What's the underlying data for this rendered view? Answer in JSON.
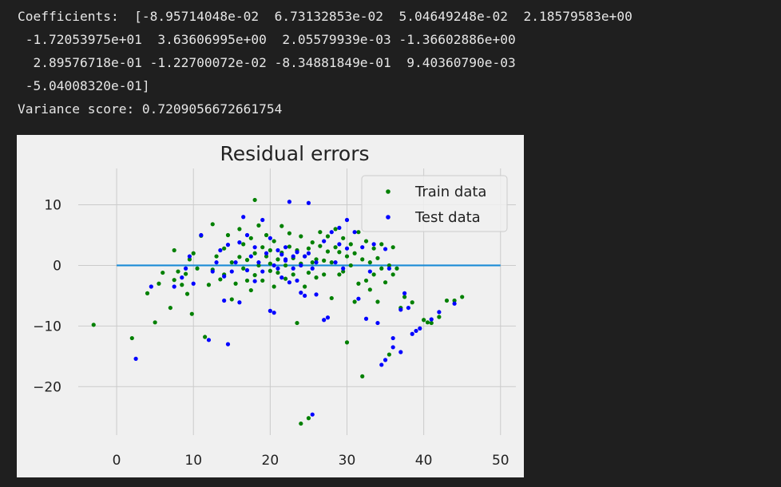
{
  "output": {
    "lines": [
      "Coefficients:  [-8.95714048e-02  6.73132853e-02  5.04649248e-02  2.18579583e+00",
      " -1.72053975e+01  3.63606995e+00  2.05579939e-03 -1.36602886e+00",
      "  2.89576718e-01 -1.22700072e-02 -8.34881849e-01  9.40360790e-03",
      " -5.04008320e-01]",
      "Variance score: 0.7209056672661754"
    ]
  },
  "colors": {
    "train": "#008000",
    "test": "#0000ff",
    "zero_line": "#1b8bd6",
    "background": "#1f1f1f",
    "plot_background": "#f0f0f0"
  },
  "chart_data": {
    "type": "scatter",
    "title": "Residual errors",
    "xlabel": "",
    "ylabel": "",
    "xlim": [
      -5,
      52
    ],
    "ylim": [
      -28,
      16
    ],
    "xticks": [
      0,
      10,
      20,
      30,
      40,
      50
    ],
    "yticks": [
      10,
      0,
      -10,
      -20
    ],
    "grid": true,
    "legend_position": "top-right",
    "hline": {
      "y": 0,
      "x_from": 0,
      "x_to": 50
    },
    "series": [
      {
        "name": "Train data",
        "color": "#008000",
        "points": [
          [
            -3,
            -9.8
          ],
          [
            2,
            -12
          ],
          [
            5,
            -9.4
          ],
          [
            4,
            -4.6
          ],
          [
            5.5,
            -3
          ],
          [
            6,
            -1.2
          ],
          [
            7,
            -7
          ],
          [
            7.5,
            -2.4
          ],
          [
            7.5,
            2.5
          ],
          [
            8,
            -1
          ],
          [
            8.5,
            -3.2
          ],
          [
            9,
            -1.4
          ],
          [
            9.2,
            -4.7
          ],
          [
            9.5,
            1
          ],
          [
            9.8,
            -8
          ],
          [
            10,
            2
          ],
          [
            10.5,
            -0.5
          ],
          [
            11,
            4.9
          ],
          [
            11.5,
            -11.8
          ],
          [
            12,
            -3.2
          ],
          [
            12.5,
            -0.7
          ],
          [
            12.5,
            6.8
          ],
          [
            13,
            1.5
          ],
          [
            13.5,
            -2.3
          ],
          [
            14,
            2.8
          ],
          [
            14,
            -1.5
          ],
          [
            14.5,
            5
          ],
          [
            15,
            0.5
          ],
          [
            15,
            -5.6
          ],
          [
            15.5,
            -3
          ],
          [
            16,
            1.4
          ],
          [
            16,
            6
          ],
          [
            16.5,
            -0.5
          ],
          [
            16.5,
            3.5
          ],
          [
            17,
            -2.5
          ],
          [
            17,
            0.9
          ],
          [
            17.5,
            -4.1
          ],
          [
            17.5,
            4.5
          ],
          [
            18,
            10.8
          ],
          [
            18,
            2
          ],
          [
            18,
            -1.6
          ],
          [
            18.5,
            0
          ],
          [
            18.5,
            6.6
          ],
          [
            19,
            3
          ],
          [
            19,
            -2.5
          ],
          [
            19.5,
            1.5
          ],
          [
            19.5,
            5
          ],
          [
            20,
            0.3
          ],
          [
            20,
            -0.9
          ],
          [
            20,
            2.5
          ],
          [
            20.5,
            -3.5
          ],
          [
            20.5,
            4
          ],
          [
            21,
            1
          ],
          [
            21,
            -1.2
          ],
          [
            21.5,
            2.1
          ],
          [
            21.5,
            6.5
          ],
          [
            22,
            0
          ],
          [
            22,
            -2.2
          ],
          [
            22.5,
            3.1
          ],
          [
            22.5,
            5.3
          ],
          [
            23,
            1.2
          ],
          [
            23,
            -1.5
          ],
          [
            23.5,
            2.5
          ],
          [
            23.5,
            -9.5
          ],
          [
            24,
            0.3
          ],
          [
            24,
            4.8
          ],
          [
            24.5,
            -3.5
          ],
          [
            24.5,
            1.5
          ],
          [
            25,
            2.8
          ],
          [
            25,
            -1.2
          ],
          [
            25.5,
            0.5
          ],
          [
            25.5,
            3.8
          ],
          [
            26,
            -2
          ],
          [
            26,
            1
          ],
          [
            26.5,
            5.5
          ],
          [
            26.5,
            3.2
          ],
          [
            27,
            0.8
          ],
          [
            27,
            -1.5
          ],
          [
            27.5,
            4.8
          ],
          [
            27.5,
            2.3
          ],
          [
            28,
            -5.4
          ],
          [
            28,
            0.5
          ],
          [
            28.5,
            3
          ],
          [
            28.5,
            6
          ],
          [
            29,
            -1.5
          ],
          [
            29,
            2.2
          ],
          [
            29.5,
            4.5
          ],
          [
            29.5,
            -1
          ],
          [
            30,
            -12.7
          ],
          [
            30,
            1.5
          ],
          [
            30.5,
            0
          ],
          [
            30.5,
            3.5
          ],
          [
            31,
            -6
          ],
          [
            31,
            2
          ],
          [
            31.5,
            -3
          ],
          [
            31.5,
            5.5
          ],
          [
            32,
            -18.3
          ],
          [
            32,
            1
          ],
          [
            32.5,
            -2.5
          ],
          [
            32.5,
            4
          ],
          [
            33,
            0.5
          ],
          [
            33,
            -4
          ],
          [
            33.5,
            2.8
          ],
          [
            33.5,
            -1.5
          ],
          [
            34,
            1.2
          ],
          [
            34,
            -6
          ],
          [
            34.5,
            -0.5
          ],
          [
            34.5,
            3.5
          ],
          [
            35,
            -2.8
          ],
          [
            35.5,
            0
          ],
          [
            35.5,
            -14.7
          ],
          [
            36,
            3
          ],
          [
            36,
            -1.5
          ],
          [
            36.5,
            -0.5
          ],
          [
            37,
            -7
          ],
          [
            37.5,
            -5.2
          ],
          [
            38.5,
            -6.1
          ],
          [
            40,
            -9
          ],
          [
            40.5,
            -9.4
          ],
          [
            41,
            -9.5
          ],
          [
            42,
            -8.5
          ],
          [
            43,
            -5.8
          ],
          [
            44,
            -5.8
          ],
          [
            45,
            -5.2
          ],
          [
            24,
            -26.1
          ],
          [
            25,
            -25.2
          ]
        ]
      },
      {
        "name": "Test data",
        "color": "#0000ff",
        "points": [
          [
            2.5,
            -15.4
          ],
          [
            4.5,
            -3.5
          ],
          [
            7.5,
            -3.5
          ],
          [
            8.5,
            -2
          ],
          [
            9,
            -0.5
          ],
          [
            9.5,
            1.5
          ],
          [
            10,
            -3
          ],
          [
            11,
            5
          ],
          [
            12,
            -12.3
          ],
          [
            12.5,
            -1
          ],
          [
            13,
            0.5
          ],
          [
            13.5,
            2.5
          ],
          [
            14,
            -5.8
          ],
          [
            14,
            -1.8
          ],
          [
            14.5,
            -13
          ],
          [
            14.5,
            3.4
          ],
          [
            15,
            -1
          ],
          [
            15.5,
            0.5
          ],
          [
            16,
            -6.1
          ],
          [
            16,
            3.8
          ],
          [
            16.5,
            8
          ],
          [
            17,
            -0.8
          ],
          [
            17,
            5
          ],
          [
            17.5,
            1.5
          ],
          [
            18,
            -2.6
          ],
          [
            18,
            3
          ],
          [
            18.5,
            0.5
          ],
          [
            19,
            7.5
          ],
          [
            19,
            -1
          ],
          [
            19.5,
            2
          ],
          [
            20,
            -7.5
          ],
          [
            20,
            4.5
          ],
          [
            20.5,
            -7.8
          ],
          [
            20.5,
            0
          ],
          [
            21,
            2.5
          ],
          [
            21,
            -0.5
          ],
          [
            21.5,
            1.8
          ],
          [
            21.5,
            -2
          ],
          [
            22,
            0.8
          ],
          [
            22,
            3
          ],
          [
            22.5,
            10.5
          ],
          [
            22.5,
            -2.8
          ],
          [
            23,
            1.5
          ],
          [
            23,
            -0.5
          ],
          [
            23.5,
            2.2
          ],
          [
            23.5,
            -2.5
          ],
          [
            24,
            0
          ],
          [
            24,
            -4.5
          ],
          [
            24.5,
            1.5
          ],
          [
            24.5,
            -5
          ],
          [
            25,
            10.3
          ],
          [
            25,
            2
          ],
          [
            25.5,
            -0.5
          ],
          [
            25.5,
            -24.6
          ],
          [
            26,
            0.5
          ],
          [
            26,
            -4.8
          ],
          [
            27,
            4
          ],
          [
            27,
            -9
          ],
          [
            27.5,
            -8.6
          ],
          [
            28,
            5.5
          ],
          [
            28.5,
            0.5
          ],
          [
            29,
            6.2
          ],
          [
            29,
            3.5
          ],
          [
            29.5,
            -0.5
          ],
          [
            30,
            2.8
          ],
          [
            30,
            7.5
          ],
          [
            31,
            5.5
          ],
          [
            31.5,
            -5.5
          ],
          [
            32,
            3
          ],
          [
            32.5,
            -8.8
          ],
          [
            33,
            -1
          ],
          [
            33.5,
            3.5
          ],
          [
            34,
            -9.5
          ],
          [
            34.5,
            -16.4
          ],
          [
            35,
            -15.6
          ],
          [
            35.5,
            -0.5
          ],
          [
            36,
            -13.5
          ],
          [
            36,
            -12
          ],
          [
            37,
            -7.3
          ],
          [
            37.5,
            -4.6
          ],
          [
            38,
            -7
          ],
          [
            38.5,
            -11.3
          ],
          [
            39,
            -10.8
          ],
          [
            39.5,
            -10.4
          ],
          [
            41,
            -8.9
          ],
          [
            42,
            -7.7
          ],
          [
            44,
            -6.3
          ],
          [
            35,
            2.7
          ],
          [
            37,
            -14.3
          ],
          [
            22,
            1
          ]
        ]
      }
    ]
  }
}
